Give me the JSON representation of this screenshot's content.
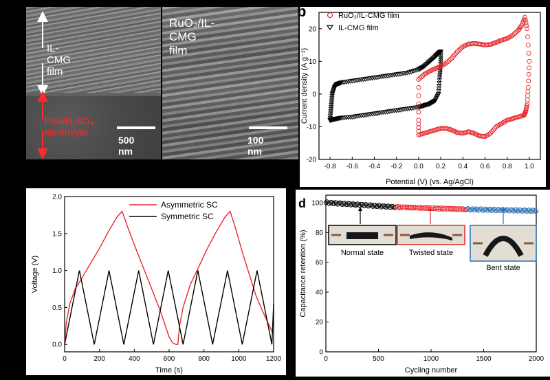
{
  "panel_a": {
    "label_film": "IL-CMG film",
    "label_electrolyte": "PVA/H₂SO₄ electrolyte",
    "scale_left": "500 nm",
    "title_right": "RuO₂/IL-CMG film",
    "scale_right": "100 nm"
  },
  "chart_data": [
    {
      "panel": "b",
      "type": "scatter",
      "xlabel": "Potential (V) (vs. Ag/AgCl)",
      "ylabel": "Current density (A g⁻¹)",
      "xlim": [
        -0.9,
        1.1
      ],
      "ylim": [
        -20,
        25
      ],
      "xticks": [
        -0.8,
        -0.6,
        -0.4,
        -0.2,
        0.0,
        0.2,
        0.4,
        0.6,
        0.8,
        1.0
      ],
      "xtick_labels": [
        "-0.8",
        "-0.6",
        "-0.4",
        "-0.2",
        "0.0",
        "0.2",
        "0.4",
        "0.6",
        "0.8",
        "1.0"
      ],
      "yticks": [
        -20,
        -10,
        0,
        10,
        20
      ],
      "ytick_labels": [
        "-20",
        "-10",
        "0",
        "10",
        "20"
      ],
      "legend_position": "top-left",
      "series": [
        {
          "name": "RuO₂/IL-CMG film",
          "color": "#e8262b",
          "marker": "circle",
          "x": [
            0.0,
            0.05,
            0.1,
            0.15,
            0.2,
            0.25,
            0.3,
            0.35,
            0.4,
            0.45,
            0.5,
            0.55,
            0.6,
            0.65,
            0.7,
            0.75,
            0.8,
            0.85,
            0.9,
            0.93,
            0.96,
            0.98,
            1.0,
            0.99,
            0.98,
            0.97,
            0.96,
            0.95,
            0.9,
            0.85,
            0.8,
            0.75,
            0.7,
            0.65,
            0.6,
            0.55,
            0.5,
            0.45,
            0.4,
            0.35,
            0.3,
            0.25,
            0.2,
            0.15,
            0.1,
            0.05,
            0.0,
            0.0,
            0.0
          ],
          "y": [
            4.5,
            6,
            7,
            7.8,
            8.5,
            9.5,
            11,
            13,
            14.5,
            15.3,
            15.5,
            15.3,
            15,
            15.2,
            15.8,
            16.5,
            17,
            18,
            19.5,
            21,
            23.5,
            20,
            10,
            2,
            -3,
            -5,
            -6,
            -6.5,
            -7,
            -7.5,
            -8,
            -9,
            -10,
            -12,
            -13,
            -12.8,
            -12,
            -11.5,
            -12,
            -11.8,
            -11,
            -10.5,
            -10.5,
            -11,
            -11.5,
            -12,
            -12.5,
            -8,
            2
          ]
        },
        {
          "name": "IL-CMG film",
          "color": "#000000",
          "marker": "triangle-down",
          "x": [
            -0.8,
            -0.79,
            -0.78,
            -0.76,
            -0.74,
            -0.7,
            -0.6,
            -0.5,
            -0.4,
            -0.3,
            -0.2,
            -0.1,
            0.0,
            0.05,
            0.1,
            0.15,
            0.18,
            0.2,
            0.2,
            0.19,
            0.18,
            0.15,
            0.1,
            0.05,
            0.0,
            -0.1,
            -0.2,
            -0.3,
            -0.4,
            -0.5,
            -0.6,
            -0.7,
            -0.75,
            -0.78,
            -0.8
          ],
          "y": [
            -8,
            -4,
            0,
            2,
            3,
            3.5,
            4,
            4.5,
            5,
            5.5,
            6,
            6.5,
            7.5,
            8.5,
            10,
            11.5,
            12.5,
            13,
            9,
            5,
            0,
            -2,
            -3,
            -3.5,
            -4,
            -4.5,
            -5,
            -5.5,
            -6,
            -6.5,
            -7,
            -7.3,
            -7.6,
            -7.8,
            -8
          ]
        }
      ]
    },
    {
      "panel": "c",
      "type": "line",
      "xlabel": "Time (s)",
      "ylabel": "Voltage (V)",
      "xlim": [
        0,
        1200
      ],
      "ylim": [
        -0.1,
        2.0
      ],
      "xticks": [
        0,
        200,
        400,
        600,
        800,
        1000,
        1200
      ],
      "xtick_labels": [
        "0",
        "200",
        "400",
        "600",
        "800",
        "1000",
        "1200"
      ],
      "yticks": [
        0.0,
        0.5,
        1.0,
        1.5,
        2.0
      ],
      "ytick_labels": [
        "0.0",
        "0.5",
        "1.0",
        "1.5",
        "2.0"
      ],
      "legend_position": "top-center",
      "series": [
        {
          "name": "Asymmetric SC",
          "color": "#e8262b",
          "x": [
            0,
            10,
            30,
            60,
            100,
            150,
            200,
            250,
            300,
            330,
            360,
            400,
            450,
            500,
            550,
            600,
            620,
            640,
            650,
            660,
            680,
            720,
            770,
            820,
            870,
            920,
            950,
            980,
            1020,
            1060,
            1100,
            1150,
            1190,
            1200
          ],
          "y": [
            0,
            0.3,
            0.55,
            0.75,
            0.9,
            1.1,
            1.3,
            1.52,
            1.72,
            1.8,
            1.6,
            1.35,
            1.05,
            0.75,
            0.45,
            0.1,
            0.02,
            0.0,
            0.0,
            0.25,
            0.5,
            0.8,
            1.05,
            1.3,
            1.52,
            1.72,
            1.8,
            1.58,
            1.25,
            0.95,
            0.65,
            0.38,
            0.18,
            0.15
          ]
        },
        {
          "name": "Symmetric SC",
          "color": "#000000",
          "x": [
            0,
            85,
            170,
            255,
            340,
            425,
            510,
            595,
            680,
            765,
            850,
            935,
            1020,
            1105,
            1190,
            1200
          ],
          "y": [
            0,
            1.0,
            0,
            1.0,
            0,
            1.0,
            0,
            1.0,
            0,
            1.0,
            0,
            1.0,
            0,
            1.0,
            0,
            0.55
          ]
        }
      ]
    },
    {
      "panel": "d",
      "type": "scatter",
      "xlabel": "Cycling number",
      "ylabel": "Capacitance retention (%)",
      "xlim": [
        0,
        2000
      ],
      "ylim": [
        0,
        105
      ],
      "xticks": [
        0,
        500,
        1000,
        1500,
        2000
      ],
      "xtick_labels": [
        "0",
        "500",
        "1000",
        "1500",
        "2000"
      ],
      "yticks": [
        0,
        20,
        40,
        60,
        80,
        100
      ],
      "ytick_labels": [
        "0",
        "20",
        "40",
        "60",
        "80",
        "100"
      ],
      "series": [
        {
          "name": "Normal state",
          "color": "#000000",
          "marker": "circle",
          "x_range": [
            0,
            660
          ],
          "y_start": 100,
          "y_end": 97
        },
        {
          "name": "Twisted state",
          "color": "#e8262b",
          "marker": "square",
          "x_range": [
            670,
            1330
          ],
          "y_start": 97,
          "y_end": 95.5
        },
        {
          "name": "Bent state",
          "color": "#2a6fb5",
          "marker": "circle",
          "x_range": [
            1340,
            2000
          ],
          "y_start": 95.5,
          "y_end": 94.5
        }
      ],
      "insets": [
        {
          "label": "Normal state",
          "color": "#000000"
        },
        {
          "label": "Twisted state",
          "color": "#e8262b"
        },
        {
          "label": "Bent state",
          "color": "#2a6fb5"
        }
      ]
    }
  ],
  "panel_labels": {
    "b": "b",
    "d": "d"
  }
}
